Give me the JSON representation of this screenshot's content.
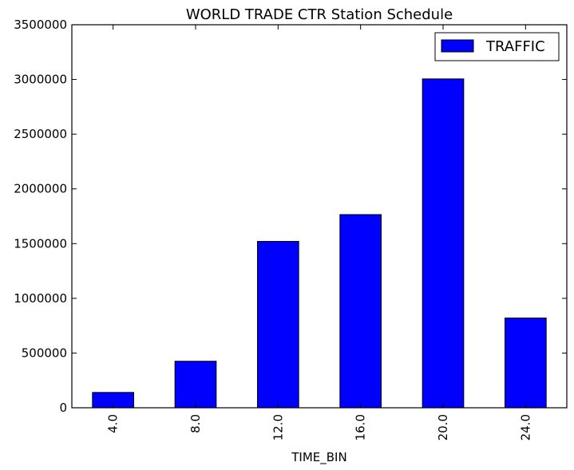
{
  "chart_data": {
    "type": "bar",
    "title": "WORLD TRADE CTR Station Schedule",
    "xlabel": "TIME_BIN",
    "ylabel": "",
    "categories": [
      "4.0",
      "8.0",
      "12.0",
      "16.0",
      "20.0",
      "24.0"
    ],
    "series": [
      {
        "name": "TRAFFIC",
        "values": [
          140000,
          425000,
          1520000,
          1765000,
          3005000,
          820000
        ]
      }
    ],
    "ylim": [
      0,
      3500000
    ],
    "yticks": [
      "0",
      "500000",
      "1000000",
      "1500000",
      "2000000",
      "2500000",
      "3000000",
      "3500000"
    ],
    "grid": false,
    "legend_position": "top-right",
    "colors": {
      "bar": "#0000ff",
      "edge": "#000000"
    }
  }
}
